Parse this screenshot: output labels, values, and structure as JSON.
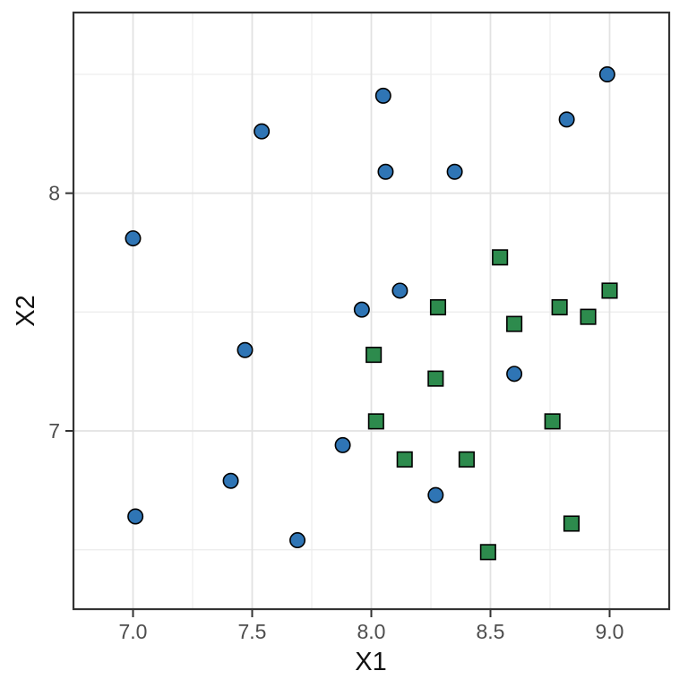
{
  "chart_data": {
    "type": "scatter",
    "title": "",
    "xlabel": "X1",
    "ylabel": "X2",
    "xlim": [
      6.75,
      9.25
    ],
    "ylim": [
      6.25,
      8.76
    ],
    "x_major_ticks": [
      7.0,
      7.5,
      8.0,
      8.5,
      9.0
    ],
    "x_tick_labels": [
      "7.0",
      "7.5",
      "8.0",
      "8.5",
      "9.0"
    ],
    "x_minor_ticks": [
      7.25,
      7.75,
      8.25,
      8.75
    ],
    "y_major_ticks": [
      7,
      8
    ],
    "y_tick_labels": [
      "7",
      "8"
    ],
    "y_minor_ticks": [
      6.5,
      7.5,
      8.5
    ],
    "grid": true,
    "legend": "none",
    "series": [
      {
        "name": "circle-group",
        "marker": "circle",
        "fill": "#2F75B5",
        "stroke": "#000000",
        "points": [
          [
            7.0,
            7.81
          ],
          [
            7.54,
            8.26
          ],
          [
            8.05,
            8.41
          ],
          [
            8.06,
            8.09
          ],
          [
            8.35,
            8.09
          ],
          [
            8.82,
            8.31
          ],
          [
            8.99,
            8.5
          ],
          [
            8.12,
            7.59
          ],
          [
            7.96,
            7.51
          ],
          [
            7.47,
            7.34
          ],
          [
            8.6,
            7.24
          ],
          [
            7.88,
            6.94
          ],
          [
            7.41,
            6.79
          ],
          [
            7.01,
            6.64
          ],
          [
            7.69,
            6.54
          ],
          [
            8.27,
            6.73
          ]
        ]
      },
      {
        "name": "square-group",
        "marker": "square",
        "fill": "#2D8B4D",
        "stroke": "#000000",
        "points": [
          [
            8.54,
            7.73
          ],
          [
            8.28,
            7.52
          ],
          [
            8.6,
            7.45
          ],
          [
            8.79,
            7.52
          ],
          [
            8.91,
            7.48
          ],
          [
            9.0,
            7.59
          ],
          [
            8.01,
            7.32
          ],
          [
            8.27,
            7.22
          ],
          [
            8.02,
            7.04
          ],
          [
            8.76,
            7.04
          ],
          [
            8.14,
            6.88
          ],
          [
            8.4,
            6.88
          ],
          [
            8.84,
            6.61
          ],
          [
            8.49,
            6.49
          ]
        ]
      }
    ],
    "style": {
      "background": "#FFFFFF",
      "panel_border_color": "#333333",
      "major_grid_color": "#E2E2E2",
      "minor_grid_color": "#EDEDED",
      "tick_color": "#333333",
      "tick_label_color": "#4D4D4D",
      "axis_title_color": "#111111"
    }
  }
}
